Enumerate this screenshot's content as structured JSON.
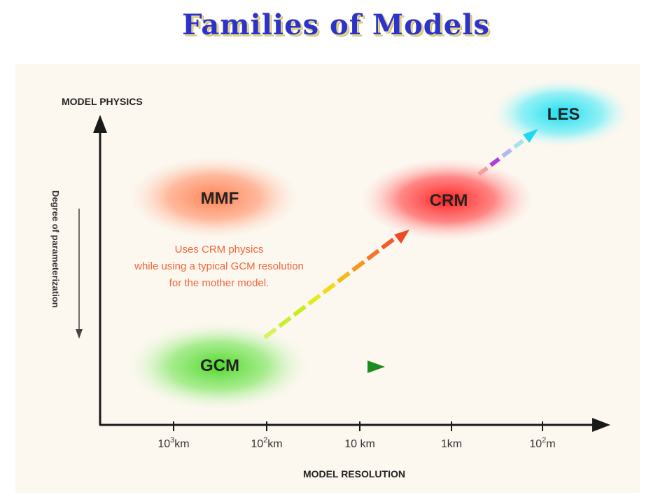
{
  "title": "Families of Models",
  "diagram": {
    "y_axis_label": "MODEL PHYSICS",
    "x_axis_label": "MODEL RESOLUTION",
    "side_label": "Degree of parameterization",
    "x_ticks": [
      {
        "base": "10",
        "exp": "3",
        "unit": "km"
      },
      {
        "base": "10",
        "exp": "2",
        "unit": "km"
      },
      {
        "base": "10 km",
        "exp": "",
        "unit": ""
      },
      {
        "base": "1km",
        "exp": "",
        "unit": ""
      },
      {
        "base": "10",
        "exp": "2",
        "unit": "m"
      }
    ],
    "nodes": {
      "mmf": "MMF",
      "crm": "CRM",
      "les": "LES",
      "gcm": "GCM"
    },
    "mmf_note": [
      "Uses CRM physics",
      "while using a typical GCM resolution",
      "for the mother model."
    ],
    "colors": {
      "title": "#2c33cc",
      "mmf": "#ff8a5c",
      "crm": "#ff3b3b",
      "les": "#29e4f0",
      "gcm": "#6fe04a",
      "note": "#f0673a",
      "gcm_arrow": "#1f8a1f"
    }
  }
}
